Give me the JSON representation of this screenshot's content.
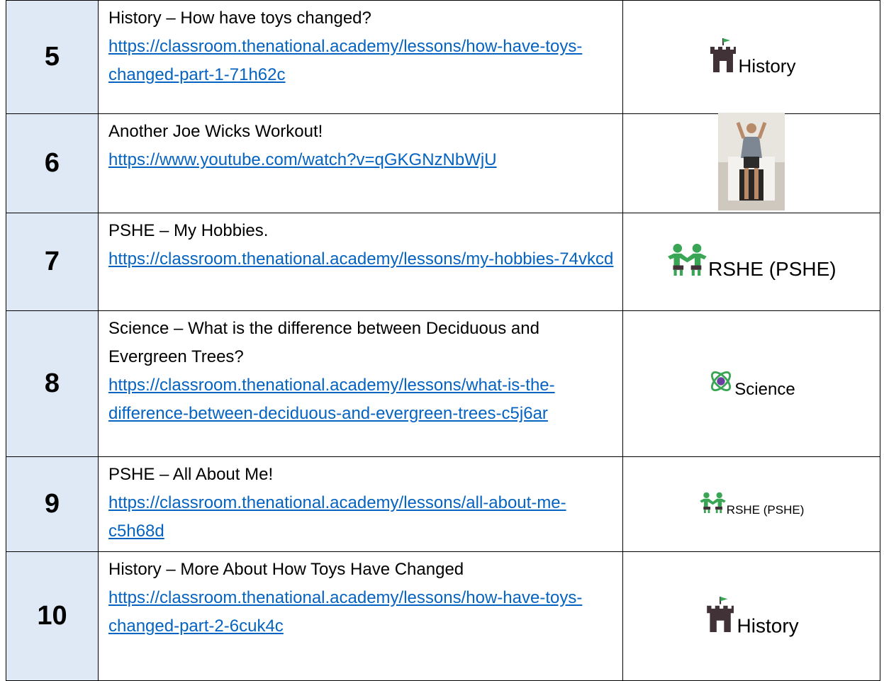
{
  "table": {
    "rows": [
      {
        "number": "5",
        "title": "History – How have toys changed?",
        "link": "https://classroom.thenational.academy/lessons/how-have-toys-changed-part-1-71h62c",
        "badge": "History"
      },
      {
        "number": "6",
        "title": "Another Joe Wicks Workout!",
        "link": "https://www.youtube.com/watch?v=qGKGNzNbWjU"
      },
      {
        "number": "7",
        "title": "PSHE – My Hobbies.",
        "link": "https://classroom.thenational.academy/lessons/my-hobbies-74vkcd",
        "badge": "RSHE (PSHE)"
      },
      {
        "number": "8",
        "title": "Science – What is the difference between Deciduous and Evergreen Trees?",
        "link": "https://classroom.thenational.academy/lessons/what-is-the-difference-between-deciduous-and-evergreen-trees-c5j6ar",
        "badge": "Science"
      },
      {
        "number": "9",
        "title": "PSHE –  All About Me!",
        "link": "https://classroom.thenational.academy/lessons/all-about-me-c5h68d",
        "badge": "RSHE (PSHE)"
      },
      {
        "number": "10",
        "title": "History – More About How Toys Have Changed",
        "link": "https://classroom.thenational.academy/lessons/how-have-toys-changed-part-2-6cuk4c",
        "badge": "History"
      }
    ]
  }
}
